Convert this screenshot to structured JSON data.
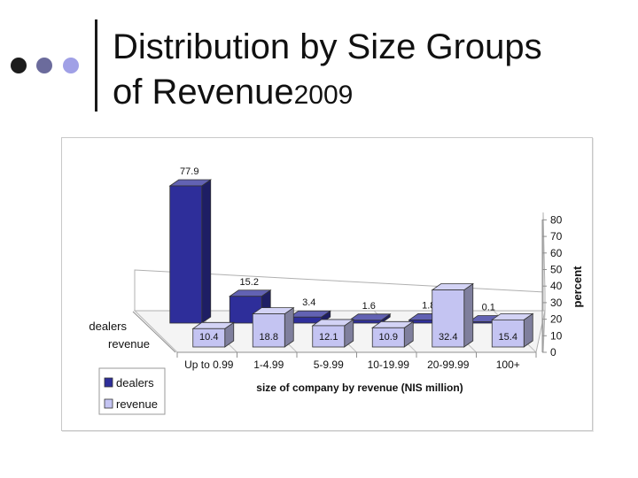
{
  "slide": {
    "title_line1": "Distribution by Size Groups",
    "title_line2": "of Revenue",
    "title_year": "2009",
    "bullet_colors": [
      "#1c1c1c",
      "#6b6b9c",
      "#a0a0e6"
    ]
  },
  "chart_data": {
    "type": "bar",
    "style": "3d-clustered-depth",
    "title": "",
    "categories": [
      "Up to 0.99",
      "1-4.99",
      "5-9.99",
      "10-19.99",
      "20-99.99",
      "100+"
    ],
    "series": [
      {
        "name": "dealers",
        "color": "#2e2e9a",
        "values": [
          77.9,
          15.2,
          3.4,
          1.6,
          1.8,
          0.1
        ]
      },
      {
        "name": "revenue",
        "color": "#c4c4f2",
        "values": [
          10.4,
          18.8,
          12.1,
          10.9,
          32.4,
          15.4
        ]
      }
    ],
    "data_labels": {
      "dealers": [
        "77.9",
        "15.2",
        "3.4",
        "1.6",
        "1.8",
        "0.1"
      ],
      "revenue": [
        "10.4",
        "18.8",
        "12.1",
        "10.9",
        "32.4",
        "15.4"
      ]
    },
    "depth_labels": [
      "dealers",
      "revenue"
    ],
    "xlabel": "size of company by revenue  (NIS million)",
    "ylabel": "percent",
    "ylim": [
      0,
      80
    ],
    "yticks": [
      "0",
      "10",
      "20",
      "30",
      "40",
      "50",
      "60",
      "70",
      "80"
    ],
    "legend_position": "bottom-left",
    "grid": false
  }
}
